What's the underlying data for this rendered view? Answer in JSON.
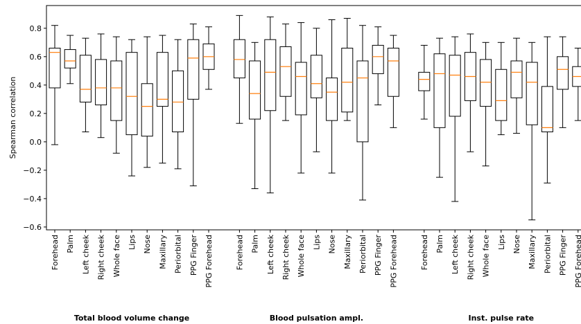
{
  "chart_data": {
    "type": "box",
    "y_label": "Spearman correlation",
    "ylim": [
      -0.62,
      0.96
    ],
    "yticks": [
      {
        "value": -0.6,
        "label": "−0.6"
      },
      {
        "value": -0.4,
        "label": "−0.4"
      },
      {
        "value": -0.2,
        "label": "−0.2"
      },
      {
        "value": 0.0,
        "label": "0.0"
      },
      0.2,
      0.4,
      0.6,
      0.8
    ],
    "box_color": "#000000",
    "median_color": "#ff7f0e",
    "groups": [
      {
        "name": "Total blood volume change",
        "categories": [
          "Forehead",
          "Palm",
          "Left cheek",
          "Right cheek",
          "Whole face",
          "Lips",
          "Nose",
          "Maxillary",
          "Periorbital",
          "PPG Finger",
          "PPG Forehead"
        ],
        "boxes": [
          {
            "whislo": -0.02,
            "q1": 0.38,
            "med": 0.63,
            "q3": 0.66,
            "whishi": 0.82
          },
          {
            "whislo": 0.41,
            "q1": 0.52,
            "med": 0.57,
            "q3": 0.65,
            "whishi": 0.75
          },
          {
            "whislo": 0.07,
            "q1": 0.28,
            "med": 0.37,
            "q3": 0.61,
            "whishi": 0.73
          },
          {
            "whislo": 0.03,
            "q1": 0.26,
            "med": 0.38,
            "q3": 0.58,
            "whishi": 0.76
          },
          {
            "whislo": -0.08,
            "q1": 0.15,
            "med": 0.38,
            "q3": 0.57,
            "whishi": 0.74
          },
          {
            "whislo": -0.24,
            "q1": 0.05,
            "med": 0.32,
            "q3": 0.63,
            "whishi": 0.72
          },
          {
            "whislo": -0.18,
            "q1": 0.04,
            "med": 0.25,
            "q3": 0.41,
            "whishi": 0.74
          },
          {
            "whislo": -0.15,
            "q1": 0.25,
            "med": 0.3,
            "q3": 0.63,
            "whishi": 0.75
          },
          {
            "whislo": -0.19,
            "q1": 0.07,
            "med": 0.28,
            "q3": 0.5,
            "whishi": 0.72
          },
          {
            "whislo": -0.31,
            "q1": 0.3,
            "med": 0.59,
            "q3": 0.72,
            "whishi": 0.83
          },
          {
            "whislo": 0.37,
            "q1": 0.51,
            "med": 0.6,
            "q3": 0.69,
            "whishi": 0.81
          }
        ]
      },
      {
        "name": "Blood pulsation ampl.",
        "categories": [
          "Forehead",
          "Palm",
          "Left cheek",
          "Right cheek",
          "Whole face",
          "Lips",
          "Nose",
          "Maxillary",
          "Periorbital",
          "PPG Finger",
          "PPG Forehead"
        ],
        "boxes": [
          {
            "whislo": 0.13,
            "q1": 0.45,
            "med": 0.58,
            "q3": 0.72,
            "whishi": 0.89
          },
          {
            "whislo": -0.33,
            "q1": 0.16,
            "med": 0.34,
            "q3": 0.57,
            "whishi": 0.7
          },
          {
            "whislo": -0.36,
            "q1": 0.22,
            "med": 0.49,
            "q3": 0.72,
            "whishi": 0.88
          },
          {
            "whislo": 0.15,
            "q1": 0.32,
            "med": 0.53,
            "q3": 0.67,
            "whishi": 0.83
          },
          {
            "whislo": -0.22,
            "q1": 0.19,
            "med": 0.46,
            "q3": 0.56,
            "whishi": 0.84
          },
          {
            "whislo": -0.07,
            "q1": 0.31,
            "med": 0.41,
            "q3": 0.61,
            "whishi": 0.8
          },
          {
            "whislo": -0.22,
            "q1": 0.15,
            "med": 0.35,
            "q3": 0.45,
            "whishi": 0.86
          },
          {
            "whislo": 0.15,
            "q1": 0.21,
            "med": 0.42,
            "q3": 0.66,
            "whishi": 0.87
          },
          {
            "whislo": -0.41,
            "q1": 0.0,
            "med": 0.45,
            "q3": 0.57,
            "whishi": 0.82
          },
          {
            "whislo": 0.26,
            "q1": 0.48,
            "med": 0.6,
            "q3": 0.68,
            "whishi": 0.81
          },
          {
            "whislo": 0.1,
            "q1": 0.32,
            "med": 0.57,
            "q3": 0.66,
            "whishi": 0.75
          }
        ]
      },
      {
        "name": "Inst. pulse rate",
        "categories": [
          "Forehead",
          "Palm",
          "Left cheek",
          "Right cheek",
          "Whole face",
          "Lips",
          "Nose",
          "Maxillary",
          "Periorbital",
          "PPG Finger",
          "PPG Forehead"
        ],
        "boxes": [
          {
            "whislo": 0.16,
            "q1": 0.36,
            "med": 0.44,
            "q3": 0.49,
            "whishi": 0.68
          },
          {
            "whislo": -0.25,
            "q1": 0.1,
            "med": 0.48,
            "q3": 0.62,
            "whishi": 0.73
          },
          {
            "whislo": -0.42,
            "q1": 0.18,
            "med": 0.47,
            "q3": 0.61,
            "whishi": 0.74
          },
          {
            "whislo": -0.07,
            "q1": 0.29,
            "med": 0.46,
            "q3": 0.63,
            "whishi": 0.76
          },
          {
            "whislo": -0.17,
            "q1": 0.25,
            "med": 0.42,
            "q3": 0.58,
            "whishi": 0.7
          },
          {
            "whislo": 0.05,
            "q1": 0.15,
            "med": 0.29,
            "q3": 0.51,
            "whishi": 0.7
          },
          {
            "whislo": 0.06,
            "q1": 0.31,
            "med": 0.49,
            "q3": 0.57,
            "whishi": 0.73
          },
          {
            "whislo": -0.55,
            "q1": 0.12,
            "med": 0.42,
            "q3": 0.56,
            "whishi": 0.7
          },
          {
            "whislo": -0.29,
            "q1": 0.07,
            "med": 0.1,
            "q3": 0.39,
            "whishi": 0.74
          },
          {
            "whislo": 0.1,
            "q1": 0.37,
            "med": 0.51,
            "q3": 0.6,
            "whishi": 0.74
          },
          {
            "whislo": 0.15,
            "q1": 0.39,
            "med": 0.46,
            "q3": 0.53,
            "whishi": 0.66
          }
        ]
      }
    ]
  }
}
